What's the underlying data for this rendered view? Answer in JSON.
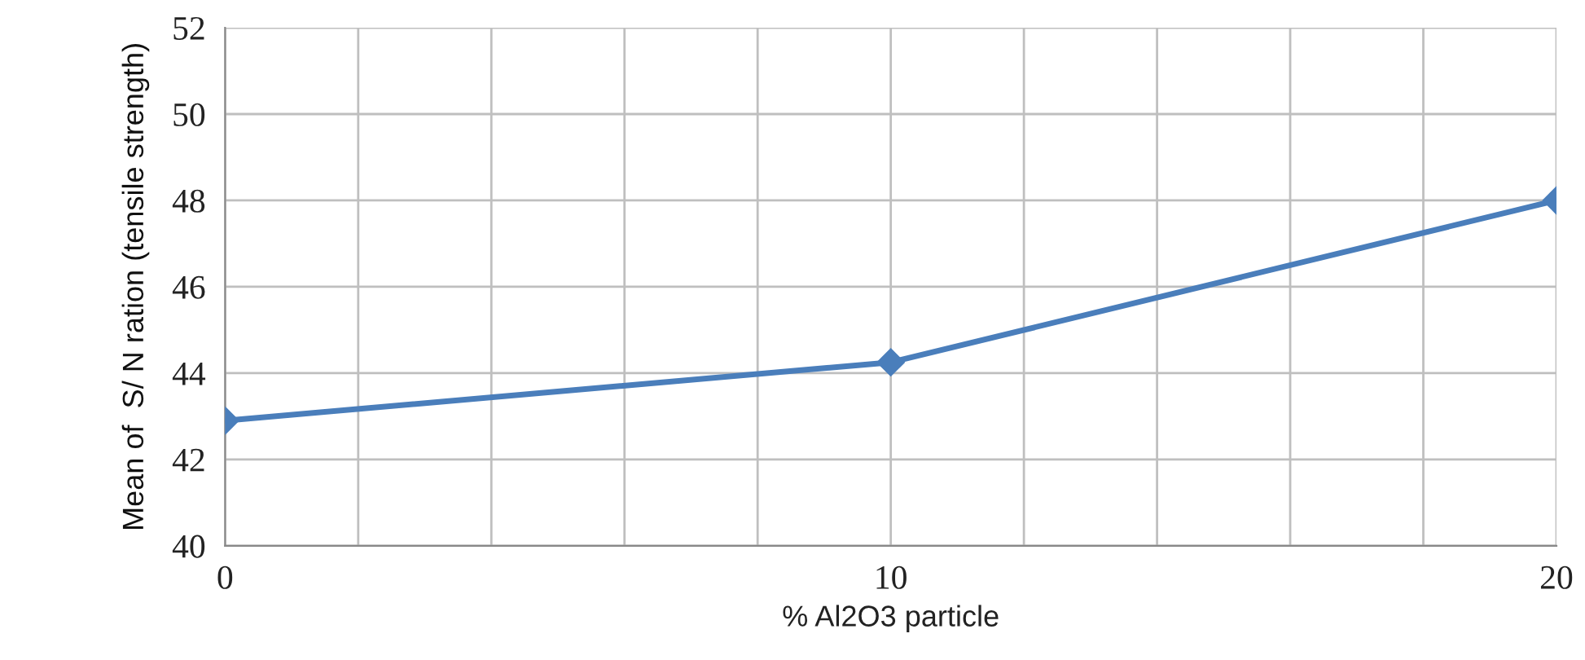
{
  "chart_data": {
    "type": "line",
    "xlabel": "% Al2O3 particle",
    "ylabel": "Mean of  S/ N ration (tensile strength)",
    "x": [
      0,
      10,
      20
    ],
    "series": [
      {
        "color": "#4a7ebb",
        "values": [
          42.9,
          44.25,
          48.0
        ]
      }
    ],
    "xlim": [
      0,
      20
    ],
    "xticks": [
      0,
      {
        "value": 2,
        "label": null
      },
      {
        "value": 4,
        "label": null
      },
      {
        "value": 6,
        "label": null
      },
      {
        "value": 8,
        "label": null
      },
      10,
      {
        "value": 12,
        "label": null
      },
      {
        "value": 14,
        "label": null
      },
      {
        "value": 16,
        "label": null
      },
      {
        "value": 18,
        "label": null
      },
      20
    ],
    "ylim": [
      40,
      52
    ],
    "yticks": [
      40,
      42,
      44,
      46,
      48,
      50,
      52
    ],
    "grid": true,
    "marker": "diamond",
    "line_style": "solid"
  }
}
